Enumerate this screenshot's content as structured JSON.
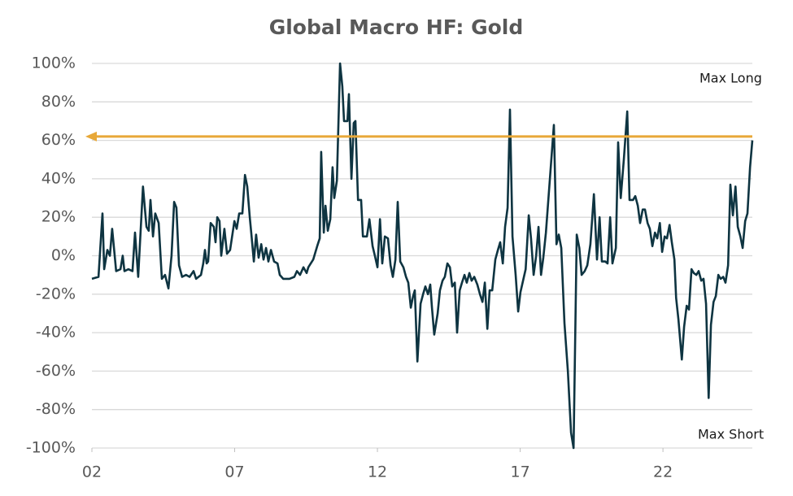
{
  "chart_data": {
    "type": "line",
    "title": "Global Macro HF: Gold",
    "x": [
      2.0,
      2.23,
      2.37,
      2.43,
      2.54,
      2.63,
      2.71,
      2.85,
      3.0,
      3.08,
      3.14,
      3.28,
      3.42,
      3.51,
      3.62,
      3.79,
      3.91,
      3.99,
      4.05,
      4.14,
      4.22,
      4.34,
      4.45,
      4.56,
      4.68,
      4.79,
      4.88,
      4.96,
      5.05,
      5.16,
      5.3,
      5.42,
      5.56,
      5.65,
      5.82,
      5.9,
      5.96,
      6.02,
      6.07,
      6.16,
      6.27,
      6.33,
      6.39,
      6.47,
      6.53,
      6.64,
      6.73,
      6.84,
      6.99,
      7.07,
      7.16,
      7.27,
      7.36,
      7.44,
      7.53,
      7.58,
      7.67,
      7.75,
      7.84,
      7.93,
      8.01,
      8.1,
      8.18,
      8.27,
      8.38,
      8.5,
      8.58,
      8.7,
      8.92,
      9.09,
      9.18,
      9.29,
      9.41,
      9.52,
      9.58,
      9.75,
      9.89,
      9.98,
      10.03,
      10.12,
      10.18,
      10.26,
      10.35,
      10.43,
      10.49,
      10.58,
      10.69,
      10.77,
      10.83,
      10.95,
      11.0,
      11.09,
      11.17,
      11.23,
      11.32,
      11.43,
      11.49,
      11.63,
      11.72,
      11.83,
      11.91,
      12.0,
      12.09,
      12.17,
      12.26,
      12.37,
      12.46,
      12.54,
      12.63,
      12.71,
      12.8,
      12.91,
      13.0,
      13.08,
      13.17,
      13.25,
      13.31,
      13.4,
      13.51,
      13.6,
      13.68,
      13.77,
      13.85,
      13.91,
      13.99,
      14.11,
      14.19,
      14.28,
      14.36,
      14.45,
      14.54,
      14.62,
      14.71,
      14.79,
      14.88,
      14.96,
      15.05,
      15.13,
      15.22,
      15.3,
      15.39,
      15.5,
      15.59,
      15.68,
      15.76,
      15.85,
      15.93,
      16.02,
      16.13,
      16.22,
      16.3,
      16.39,
      16.47,
      16.56,
      16.64,
      16.73,
      16.84,
      16.93,
      17.01,
      17.1,
      17.19,
      17.3,
      17.38,
      17.47,
      17.56,
      17.64,
      17.73,
      17.81,
      17.9,
      18.18,
      18.27,
      18.35,
      18.44,
      18.55,
      18.67,
      18.78,
      18.87,
      18.98,
      19.07,
      19.15,
      19.26,
      19.35,
      19.46,
      19.58,
      19.69,
      19.78,
      19.86,
      19.98,
      20.06,
      20.15,
      20.23,
      20.35,
      20.43,
      20.52,
      20.63,
      20.75,
      20.83,
      20.95,
      21.03,
      21.12,
      21.2,
      21.29,
      21.37,
      21.46,
      21.54,
      21.63,
      21.72,
      21.8,
      21.89,
      21.97,
      22.06,
      22.14,
      22.23,
      22.31,
      22.4,
      22.46,
      22.54,
      22.66,
      22.74,
      22.83,
      22.91,
      23.0,
      23.08,
      23.17,
      23.25,
      23.34,
      23.42,
      23.51,
      23.6,
      23.68,
      23.77,
      23.85,
      23.94,
      24.02,
      24.11,
      24.19,
      24.28,
      24.36,
      24.45,
      24.54,
      24.62,
      24.71,
      24.79,
      24.88,
      24.96,
      25.05,
      25.13
    ],
    "values": [
      -12,
      -11,
      22,
      -7,
      3,
      0,
      14,
      -8,
      -7,
      0,
      -8,
      -7,
      -8,
      12,
      -11,
      36,
      15,
      13,
      29,
      10,
      22,
      17,
      -12,
      -10,
      -17,
      0,
      28,
      25,
      -5,
      -11,
      -10,
      -11,
      -8,
      -12,
      -10,
      -4,
      3,
      -4,
      -3,
      17,
      15,
      7,
      20,
      18,
      0,
      14,
      1,
      3,
      18,
      14,
      22,
      22,
      42,
      36,
      20,
      12,
      -3,
      11,
      -1,
      6,
      -2,
      4,
      -3,
      3,
      -3,
      -4,
      -10,
      -12,
      -12,
      -11,
      -8,
      -10,
      -6,
      -9,
      -6,
      -2,
      5,
      9,
      54,
      12,
      26,
      13,
      19,
      46,
      30,
      39,
      100,
      88,
      70,
      70,
      84,
      40,
      69,
      70,
      29,
      29,
      10,
      10,
      19,
      5,
      0,
      -6,
      19,
      -4,
      10,
      9,
      -5,
      -11,
      -2,
      28,
      -3,
      -6,
      -11,
      -14,
      -27,
      -21,
      -18,
      -55,
      -25,
      -20,
      -16,
      -20,
      -15,
      -27,
      -41,
      -30,
      -18,
      -13,
      -11,
      -4,
      -6,
      -16,
      -14,
      -40,
      -18,
      -14,
      -10,
      -14,
      -9,
      -13,
      -11,
      -15,
      -20,
      -24,
      -14,
      -38,
      -18,
      -18,
      -2,
      3,
      7,
      -4,
      15,
      25,
      76,
      10,
      -10,
      -29,
      -19,
      -13,
      -7,
      21,
      9,
      -10,
      0,
      15,
      -10,
      -1,
      12,
      68,
      6,
      11,
      4,
      -35,
      -60,
      -92,
      -100,
      11,
      4,
      -10,
      -8,
      -5,
      6,
      32,
      -2,
      20,
      -3,
      -3,
      -4,
      20,
      -4,
      4,
      59,
      30,
      50,
      75,
      29,
      29,
      31,
      26,
      17,
      24,
      24,
      17,
      14,
      5,
      12,
      9,
      17,
      2,
      10,
      9,
      16,
      7,
      -2,
      -22,
      -33,
      -54,
      -37,
      -26,
      -28,
      -7,
      -9,
      -10,
      -8,
      -13,
      -12,
      -25,
      -74,
      -36,
      -24,
      -21,
      -10,
      -12,
      -11,
      -14,
      -5,
      37,
      21,
      36,
      15,
      10,
      4,
      18,
      22,
      46,
      60
    ],
    "color": "#0e3441",
    "xlim": [
      2,
      25.13
    ],
    "xticks": [
      {
        "value": 2,
        "label": "02"
      },
      {
        "value": 7,
        "label": "07"
      },
      {
        "value": 12,
        "label": "12"
      },
      {
        "value": 17,
        "label": "17"
      },
      {
        "value": 22,
        "label": "22"
      }
    ],
    "ylim": [
      -100,
      100
    ],
    "yticks": [
      {
        "value": -100,
        "label": "-100%"
      },
      {
        "value": -80,
        "label": "-80%"
      },
      {
        "value": -60,
        "label": "-60%"
      },
      {
        "value": -40,
        "label": "-40%"
      },
      {
        "value": -20,
        "label": "-20%"
      },
      {
        "value": 0,
        "label": "0%"
      },
      {
        "value": 20,
        "label": "20%"
      },
      {
        "value": 40,
        "label": "40%"
      },
      {
        "value": 60,
        "label": "60%"
      },
      {
        "value": 80,
        "label": "80%"
      },
      {
        "value": 100,
        "label": "100%"
      }
    ],
    "grid": true,
    "reference_line": {
      "value": 62,
      "color": "#e8a838"
    },
    "annotations": [
      {
        "text": "Max Long"
      },
      {
        "text": "Max Short"
      }
    ]
  }
}
